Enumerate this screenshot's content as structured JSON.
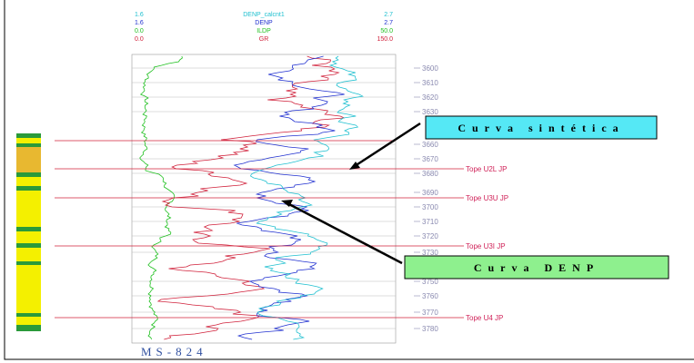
{
  "header": {
    "scales": [
      {
        "min": "1.6",
        "name": "DENP_calcnt1",
        "max": "2.7"
      },
      {
        "min": "1.6",
        "name": "DENP",
        "max": "2.7"
      },
      {
        "min": "0.0",
        "name": "ILDP",
        "max": "50.0"
      },
      {
        "min": "0.0",
        "name": "GR",
        "max": "150.0"
      }
    ]
  },
  "depths": [
    "3600",
    "3610",
    "3620",
    "3630",
    "3660",
    "3670",
    "3680",
    "3690",
    "3700",
    "3710",
    "3720",
    "3730",
    "3750",
    "3760",
    "3770",
    "3780"
  ],
  "tops": [
    "Tope U2L JP",
    "Tope U3U JP",
    "Tope U3I JP",
    "Tope U4 JP"
  ],
  "callouts": [
    "Curva sintética",
    "Curva DENP"
  ],
  "well": "MS-824"
}
